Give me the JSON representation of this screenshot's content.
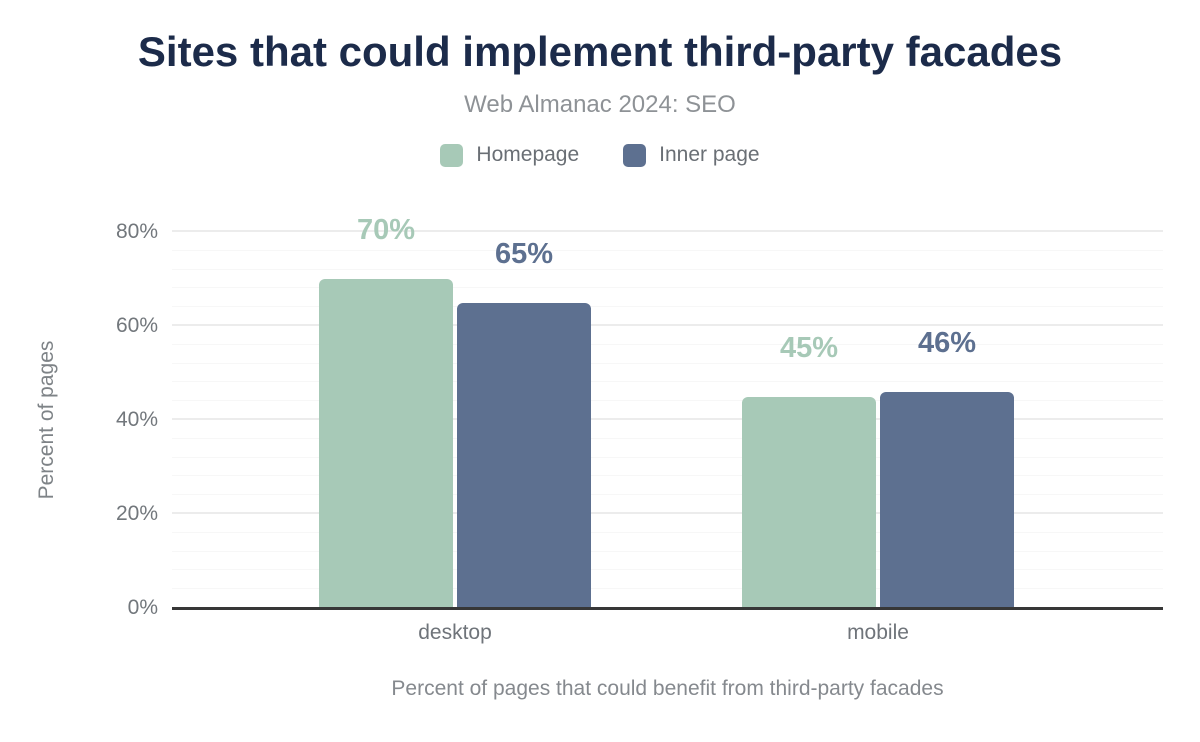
{
  "header": {
    "title": "Sites that could implement third-party facades",
    "subtitle": "Web Almanac 2024: SEO"
  },
  "chart_data": {
    "type": "bar",
    "title": "Sites that could implement third-party facades",
    "subtitle": "Web Almanac 2024: SEO",
    "categories": [
      "desktop",
      "mobile"
    ],
    "series": [
      {
        "name": "Homepage",
        "color": "#a7c9b7",
        "values": [
          70,
          45
        ]
      },
      {
        "name": "Inner page",
        "color": "#5d7090",
        "values": [
          65,
          46
        ]
      }
    ],
    "value_suffix": "%",
    "data_labels": {
      "homepage": [
        "70%",
        "45%"
      ],
      "inner_page": [
        "65%",
        "46%"
      ]
    },
    "xlabel": "Percent of pages that could benefit from third-party facades",
    "ylabel": "Percent of pages",
    "yticks": [
      "0%",
      "20%",
      "40%",
      "60%",
      "80%"
    ],
    "ylim": [
      0,
      80
    ],
    "grid": {
      "major_interval": 20,
      "minor_interval": 4,
      "major_color": "#ececec",
      "minor_color": "#f7f7f7"
    },
    "legend_position": "top",
    "colors": {
      "title": "#1c2b4a",
      "subtitle": "#8e9296",
      "axis_line": "#373737",
      "tick_text": "#72777c"
    }
  }
}
